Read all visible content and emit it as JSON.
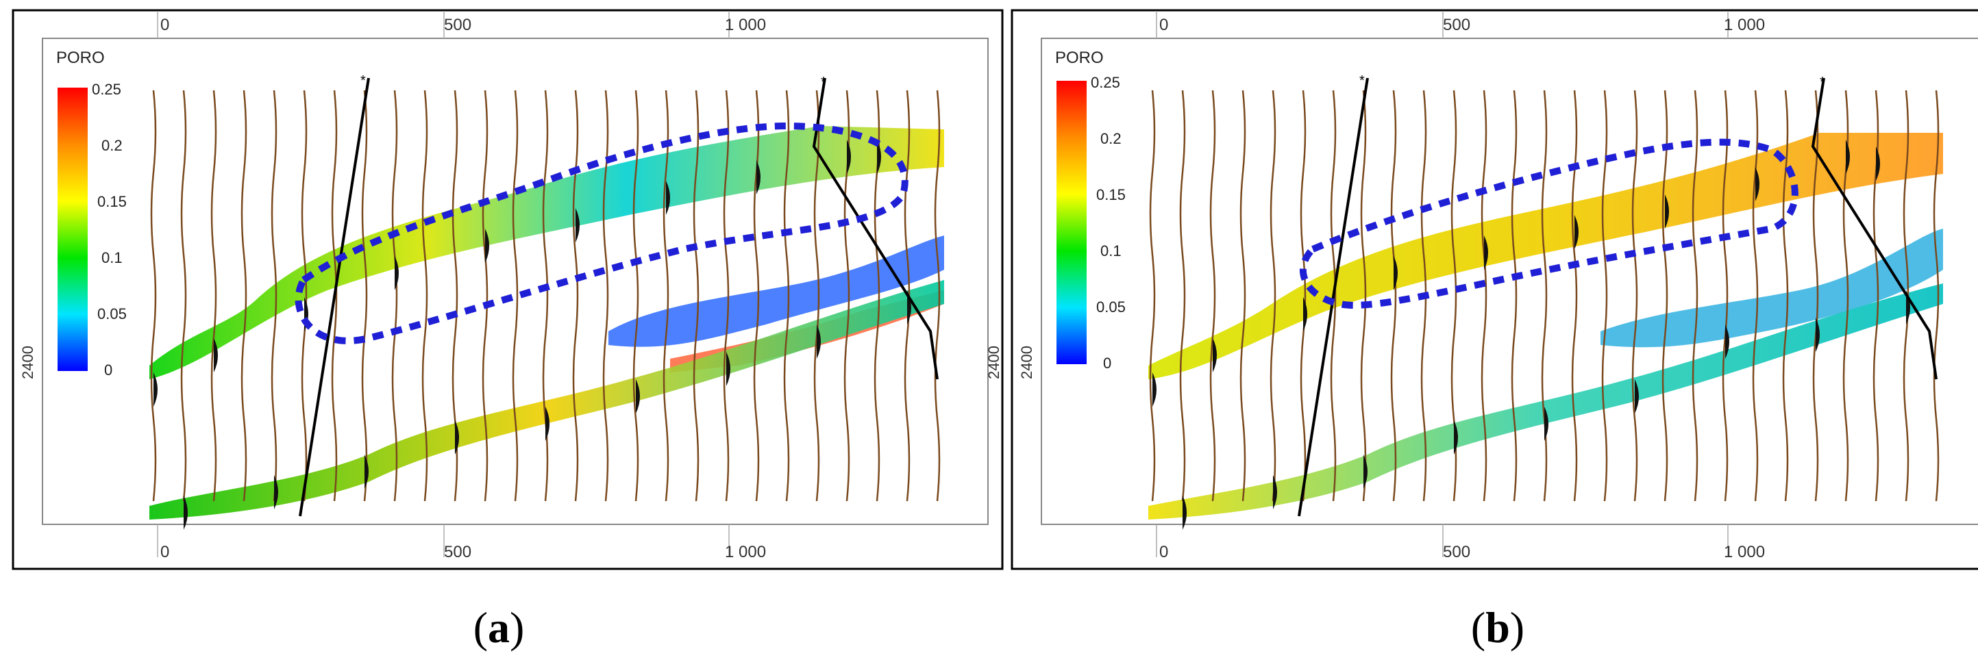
{
  "colorbar": {
    "title": "PORO",
    "ticks": [
      "0.25",
      "0.2",
      "0.15",
      "0.1",
      "0.05",
      "0"
    ],
    "colors": [
      "#ff0000",
      "#ff8c00",
      "#ffff00",
      "#00e600",
      "#00e5ff",
      "#0000ff"
    ]
  },
  "axes": {
    "x_ticks": [
      "0",
      "500",
      "1 000"
    ],
    "y_tick": "2400"
  },
  "panels": [
    {
      "id": "a",
      "caption_open": "(",
      "caption_letter": "a",
      "caption_close": ")"
    },
    {
      "id": "b",
      "caption_open": "(",
      "caption_letter": "b",
      "caption_close": ")"
    }
  ],
  "style": {
    "highlight_color": "#1f1fd6",
    "trace_color": "#7a4a1e",
    "fault_color": "#000000"
  }
}
